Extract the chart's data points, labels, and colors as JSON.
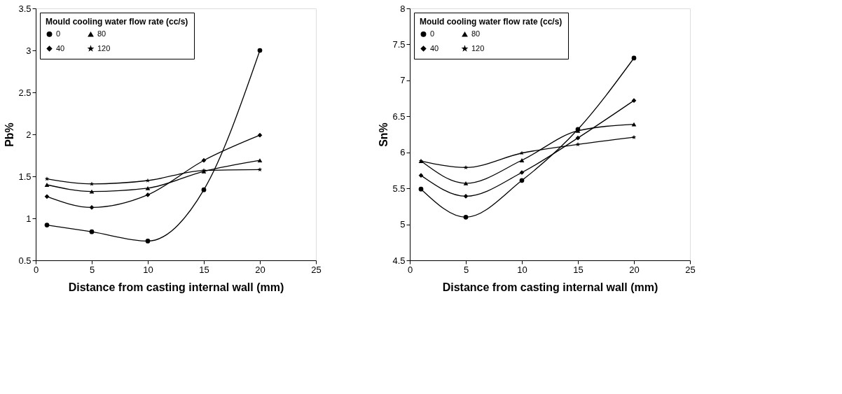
{
  "chart_data": [
    {
      "type": "line",
      "xlabel": "Distance from casting internal wall (mm)",
      "ylabel": "Pb%",
      "legend_title": "Mould cooling water flow rate (cc/s)",
      "legend": "top left",
      "grid": false,
      "line_style": "solid",
      "x": [
        1,
        5,
        10,
        15,
        20
      ],
      "xlim": [
        0,
        25
      ],
      "xticks": [
        0,
        5,
        10,
        15,
        20,
        25
      ],
      "ylim": [
        0.5,
        3.5
      ],
      "yticks": [
        0.5,
        1,
        1.5,
        2,
        2.5,
        3,
        3.5
      ],
      "series": [
        {
          "name": "0",
          "color": "#000000",
          "marker": "circle",
          "values": [
            0.92,
            0.84,
            0.73,
            1.34,
            3.0
          ]
        },
        {
          "name": "40",
          "color": "#000000",
          "marker": "diamond",
          "values": [
            1.26,
            1.13,
            1.28,
            1.69,
            1.99
          ]
        },
        {
          "name": "80",
          "color": "#000000",
          "marker": "triangle",
          "values": [
            1.4,
            1.32,
            1.36,
            1.56,
            1.69
          ]
        },
        {
          "name": "120",
          "color": "#000000",
          "marker": "star",
          "values": [
            1.47,
            1.41,
            1.45,
            1.57,
            1.58
          ]
        }
      ]
    },
    {
      "type": "line",
      "xlabel": "Distance from casting internal wall (mm)",
      "ylabel": "Sn%",
      "legend_title": "Mould cooling water flow rate (cc/s)",
      "legend": "top left",
      "grid": false,
      "line_style": "solid",
      "x": [
        1,
        5,
        10,
        15,
        20
      ],
      "xlim": [
        0,
        25
      ],
      "xticks": [
        0,
        5,
        10,
        15,
        20,
        25
      ],
      "ylim": [
        4.5,
        8
      ],
      "yticks": [
        4.5,
        5,
        5.5,
        6,
        6.5,
        7,
        7.5,
        8
      ],
      "series": [
        {
          "name": "0",
          "color": "#000000",
          "marker": "circle",
          "values": [
            5.49,
            5.1,
            5.61,
            6.32,
            7.31
          ]
        },
        {
          "name": "40",
          "color": "#000000",
          "marker": "diamond",
          "values": [
            5.68,
            5.39,
            5.72,
            6.2,
            6.72
          ]
        },
        {
          "name": "80",
          "color": "#000000",
          "marker": "triangle",
          "values": [
            5.88,
            5.57,
            5.89,
            6.3,
            6.39
          ]
        },
        {
          "name": "120",
          "color": "#000000",
          "marker": "star",
          "values": [
            5.88,
            5.79,
            5.99,
            6.11,
            6.21
          ]
        }
      ]
    }
  ]
}
